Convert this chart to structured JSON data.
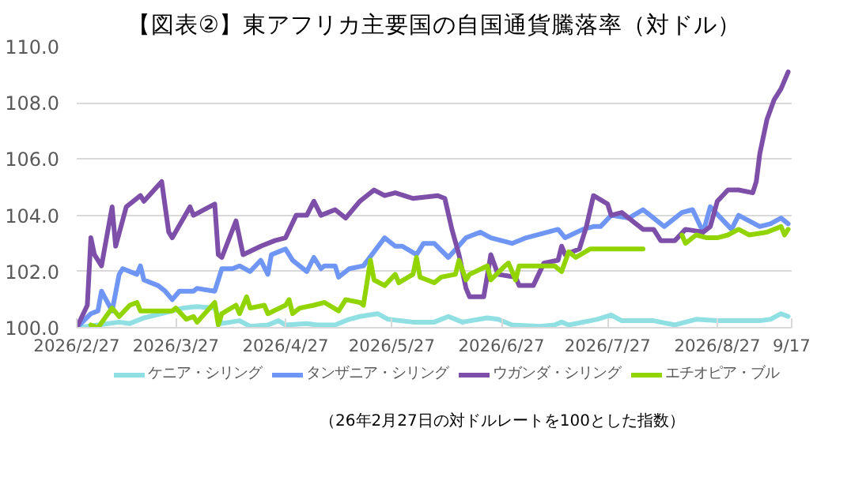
{
  "chart_data": {
    "type": "line",
    "title": "【図表②】東アフリカ主要国の自国通貨騰落率（対ドル）",
    "annotations": [
      "（26年2月27日の対ドルレートを100とした指数）"
    ],
    "xlim": [
      "2026-02-27",
      "2026-09-17"
    ],
    "xticks": [
      {
        "value": "2026-02-27",
        "label": "2026/2/27"
      },
      {
        "value": "2026-03-27",
        "label": "2026/3/27"
      },
      {
        "value": "2026-04-27",
        "label": "2026/4/27"
      },
      {
        "value": "2026-05-27",
        "label": "2026/5/27"
      },
      {
        "value": "2026-06-27",
        "label": "2026/6/27"
      },
      {
        "value": "2026-07-27",
        "label": "2026/7/27"
      },
      {
        "value": "2026-08-27",
        "label": "2026/8/27"
      },
      {
        "value": "2026-09-17",
        "label": "9/17"
      }
    ],
    "ylim": [
      100,
      110
    ],
    "yticks": [
      {
        "value": 100,
        "label": "100.0"
      },
      {
        "value": 102,
        "label": "102.0"
      },
      {
        "value": 104,
        "label": "104.0"
      },
      {
        "value": 106,
        "label": "106.0"
      },
      {
        "value": 108,
        "label": "108.0"
      },
      {
        "value": 110,
        "label": "110.0"
      }
    ],
    "grid": "y",
    "legend": "bottom",
    "marker": "none",
    "line_style": "solid",
    "series": [
      {
        "name": "ケニア・シリング",
        "color": "#8fdfe3",
        "x": [
          "2026-02-27",
          "2026-03-05",
          "2026-03-11",
          "2026-03-14",
          "2026-03-18",
          "2026-03-23",
          "2026-03-29",
          "2026-04-02",
          "2026-04-07",
          "2026-04-09",
          "2026-04-14",
          "2026-04-17",
          "2026-04-22",
          "2026-04-25",
          "2026-04-27",
          "2026-05-03",
          "2026-05-06",
          "2026-05-11",
          "2026-05-15",
          "2026-05-18",
          "2026-05-23",
          "2026-05-26",
          "2026-06-02",
          "2026-06-08",
          "2026-06-12",
          "2026-06-16",
          "2026-06-23",
          "2026-06-26",
          "2026-06-30",
          "2026-07-08",
          "2026-07-12",
          "2026-07-14",
          "2026-07-16",
          "2026-07-24",
          "2026-07-28",
          "2026-07-31",
          "2026-08-09",
          "2026-08-15",
          "2026-08-21",
          "2026-08-27",
          "2026-09-08",
          "2026-09-11",
          "2026-09-14",
          "2026-09-16"
        ],
        "values": [
          100.0,
          100.1,
          100.2,
          100.15,
          100.35,
          100.5,
          100.7,
          100.75,
          100.7,
          100.15,
          100.25,
          100.05,
          100.1,
          100.25,
          100.1,
          100.15,
          100.1,
          100.1,
          100.3,
          100.4,
          100.5,
          100.3,
          100.2,
          100.2,
          100.4,
          100.2,
          100.35,
          100.3,
          100.1,
          100.05,
          100.1,
          100.2,
          100.1,
          100.3,
          100.45,
          100.25,
          100.25,
          100.1,
          100.3,
          100.25,
          100.25,
          100.3,
          100.5,
          100.4
        ]
      },
      {
        "name": "タンザニア・シリング",
        "color": "#6f96f5",
        "x": [
          "2026-02-27",
          "2026-03-03",
          "2026-03-05",
          "2026-03-06",
          "2026-03-09",
          "2026-03-11",
          "2026-03-12",
          "2026-03-16",
          "2026-03-17",
          "2026-03-18",
          "2026-03-22",
          "2026-03-24",
          "2026-03-26",
          "2026-03-28",
          "2026-04-01",
          "2026-04-02",
          "2026-04-07",
          "2026-04-09",
          "2026-04-12",
          "2026-04-14",
          "2026-04-17",
          "2026-04-20",
          "2026-04-22",
          "2026-04-23",
          "2026-04-25",
          "2026-04-27",
          "2026-04-29",
          "2026-05-03",
          "2026-05-05",
          "2026-05-07",
          "2026-05-08",
          "2026-05-11",
          "2026-05-12",
          "2026-05-15",
          "2026-05-19",
          "2026-05-25",
          "2026-05-28",
          "2026-05-30",
          "2026-06-03",
          "2026-06-05",
          "2026-06-08",
          "2026-06-12",
          "2026-06-17",
          "2026-06-21",
          "2026-06-24",
          "2026-06-30",
          "2026-07-04",
          "2026-07-13",
          "2026-07-15",
          "2026-07-20",
          "2026-07-23",
          "2026-07-25",
          "2026-07-28",
          "2026-08-02",
          "2026-08-06",
          "2026-08-09",
          "2026-08-12",
          "2026-08-17",
          "2026-08-20",
          "2026-08-23",
          "2026-08-25",
          "2026-08-28",
          "2026-08-31",
          "2026-09-02",
          "2026-09-08",
          "2026-09-11",
          "2026-09-14",
          "2026-09-16"
        ],
        "values": [
          100.0,
          100.5,
          100.6,
          101.3,
          100.6,
          101.9,
          102.1,
          101.9,
          102.2,
          101.7,
          101.5,
          101.3,
          101.0,
          101.3,
          101.3,
          101.4,
          101.3,
          102.1,
          102.1,
          102.2,
          102.0,
          102.4,
          101.9,
          102.6,
          102.7,
          102.8,
          102.4,
          102.0,
          102.5,
          102.1,
          102.2,
          102.2,
          101.8,
          102.1,
          102.2,
          103.2,
          102.9,
          102.9,
          102.6,
          103.0,
          103.0,
          102.5,
          103.2,
          103.4,
          103.2,
          103.0,
          103.2,
          103.5,
          103.2,
          103.5,
          103.6,
          103.6,
          104.0,
          103.9,
          104.2,
          103.9,
          103.6,
          104.1,
          104.2,
          103.4,
          104.3,
          103.9,
          103.5,
          104.0,
          103.6,
          103.7,
          103.9,
          103.7
        ]
      },
      {
        "name": "ウガンダ・シリング",
        "color": "#7e4fa8",
        "x": [
          "2026-02-27",
          "2026-03-02",
          "2026-03-03",
          "2026-03-04",
          "2026-03-06",
          "2026-03-09",
          "2026-03-10",
          "2026-03-13",
          "2026-03-17",
          "2026-03-18",
          "2026-03-23",
          "2026-03-25",
          "2026-03-26",
          "2026-03-31",
          "2026-04-01",
          "2026-04-07",
          "2026-04-08",
          "2026-04-09",
          "2026-04-13",
          "2026-04-15",
          "2026-04-20",
          "2026-04-24",
          "2026-04-27",
          "2026-04-30",
          "2026-05-03",
          "2026-05-05",
          "2026-05-07",
          "2026-05-11",
          "2026-05-14",
          "2026-05-18",
          "2026-05-22",
          "2026-05-25",
          "2026-05-28",
          "2026-06-02",
          "2026-06-09",
          "2026-06-11",
          "2026-06-13",
          "2026-06-15",
          "2026-06-17",
          "2026-06-18",
          "2026-06-22",
          "2026-06-24",
          "2026-06-26",
          "2026-07-01",
          "2026-07-02",
          "2026-07-06",
          "2026-07-09",
          "2026-07-13",
          "2026-07-14",
          "2026-07-15",
          "2026-07-19",
          "2026-07-21",
          "2026-07-23",
          "2026-07-27",
          "2026-07-28",
          "2026-07-31",
          "2026-08-04",
          "2026-08-06",
          "2026-08-09",
          "2026-08-11",
          "2026-08-15",
          "2026-08-18",
          "2026-08-23",
          "2026-08-25",
          "2026-08-27",
          "2026-08-30",
          "2026-09-02",
          "2026-09-06",
          "2026-09-07",
          "2026-09-08",
          "2026-09-10",
          "2026-09-12",
          "2026-09-14",
          "2026-09-16"
        ],
        "values": [
          100.0,
          100.8,
          103.2,
          102.6,
          102.2,
          104.3,
          102.9,
          104.3,
          104.7,
          104.5,
          105.2,
          103.4,
          103.2,
          104.3,
          104.0,
          104.4,
          102.6,
          102.5,
          103.8,
          102.6,
          102.9,
          103.1,
          103.2,
          104.0,
          104.0,
          104.5,
          104.0,
          104.2,
          103.9,
          104.5,
          104.9,
          104.7,
          104.8,
          104.6,
          104.7,
          104.6,
          103.5,
          102.6,
          101.4,
          101.1,
          101.1,
          102.6,
          101.9,
          101.8,
          101.5,
          101.5,
          102.3,
          102.4,
          102.9,
          102.6,
          102.8,
          103.6,
          104.7,
          104.4,
          104.0,
          104.1,
          103.7,
          103.5,
          103.5,
          103.1,
          103.1,
          103.5,
          103.4,
          103.6,
          104.5,
          104.9,
          104.9,
          104.8,
          105.2,
          106.2,
          107.4,
          108.1,
          108.5,
          109.1
        ]
      },
      {
        "name": "エチオピア・ブル",
        "color": "#92d400",
        "x": [
          "2026-03-03",
          "2026-03-05",
          "2026-03-09",
          "2026-03-11",
          "2026-03-14",
          "2026-03-16",
          "2026-03-17",
          "2026-03-21",
          "2026-03-26",
          "2026-03-27",
          "2026-03-30",
          "2026-04-01",
          "2026-04-02",
          "2026-04-07",
          "2026-04-08",
          "2026-04-09",
          "2026-04-13",
          "2026-04-14",
          "2026-04-16",
          "2026-04-17",
          "2026-04-21",
          "2026-04-22",
          "2026-04-27",
          "2026-04-28",
          "2026-04-29",
          "2026-05-01",
          "2026-05-05",
          "2026-05-08",
          "2026-05-12",
          "2026-05-14",
          "2026-05-18",
          "2026-05-19",
          "2026-05-21",
          "2026-05-22",
          "2026-05-25",
          "2026-05-28",
          "2026-05-29",
          "2026-06-02",
          "2026-06-03",
          "2026-06-04",
          "2026-06-08",
          "2026-06-10",
          "2026-06-14",
          "2026-06-15",
          "2026-06-17",
          "2026-06-18",
          "2026-06-23",
          "2026-06-24",
          "2026-06-28",
          "2026-06-29",
          "2026-07-01",
          "2026-07-02",
          "2026-07-12",
          "2026-07-14",
          "2026-07-16",
          "2026-07-18",
          "2026-07-22",
          "2026-07-28",
          "2026-08-06",
          "2026-08-09",
          "2026-08-17",
          "2026-08-18",
          "2026-08-21",
          "2026-08-24",
          "2026-08-27",
          "2026-08-30",
          "2026-09-02",
          "2026-09-05",
          "2026-09-10",
          "2026-09-14",
          "2026-09-15",
          "2026-09-16"
        ],
        "values": [
          100.1,
          100.0,
          100.7,
          100.4,
          100.8,
          100.9,
          100.6,
          100.6,
          100.6,
          100.7,
          100.3,
          100.4,
          100.2,
          100.9,
          100.1,
          100.5,
          100.8,
          100.5,
          101.1,
          100.7,
          100.8,
          100.5,
          100.8,
          101.0,
          100.5,
          100.7,
          100.8,
          100.9,
          100.6,
          101.0,
          100.9,
          100.8,
          102.4,
          101.7,
          101.5,
          101.9,
          101.6,
          101.9,
          102.5,
          101.8,
          101.6,
          101.8,
          101.9,
          102.4,
          101.7,
          101.9,
          102.2,
          101.7,
          102.2,
          102.3,
          101.7,
          102.2,
          102.2,
          102.0,
          102.7,
          102.5,
          102.8,
          102.8,
          102.8,
          null,
          103.3,
          103.0,
          103.3,
          103.2,
          103.2,
          103.3,
          103.5,
          103.3,
          103.4,
          103.6,
          103.3,
          103.5
        ]
      }
    ]
  }
}
